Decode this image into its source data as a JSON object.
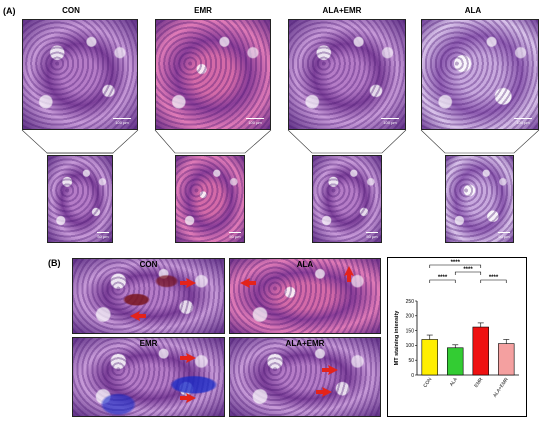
{
  "panel_a": {
    "letter": "(A)",
    "columns": [
      "CON",
      "EMR",
      "ALA+EMR",
      "ALA"
    ],
    "scale_bars": [
      "100 µm",
      "100 µm",
      "100 µm",
      "100 µm"
    ],
    "zoom_scale_bars": [
      "50 µm",
      "50 µm",
      "50 µm",
      "50 µm"
    ]
  },
  "panel_b": {
    "letter": "(B)",
    "images": [
      "CON",
      "ALA",
      "EMR",
      "ALA+EMR"
    ]
  },
  "colors": {
    "con": "#ffee00",
    "ala": "#33cc33",
    "emr": "#ee1111",
    "ala_emr": "#f4a0a0",
    "arrow": "#e4231b"
  },
  "chart_data": {
    "type": "bar",
    "categories": [
      "CON",
      "ALA",
      "EMR",
      "ALA+EMR"
    ],
    "values": [
      120,
      92,
      162,
      106
    ],
    "errors": [
      15,
      10,
      14,
      14
    ],
    "ylabel": "MT staining intensity",
    "ylim": [
      0,
      250
    ],
    "yticks": [
      0,
      50,
      100,
      150,
      200,
      250
    ],
    "significance": [
      {
        "from": 0,
        "to": 2,
        "label": "****"
      },
      {
        "from": 1,
        "to": 2,
        "label": "****"
      },
      {
        "from": 0,
        "to": 1,
        "label": "****"
      },
      {
        "from": 2,
        "to": 3,
        "label": "****"
      }
    ]
  }
}
